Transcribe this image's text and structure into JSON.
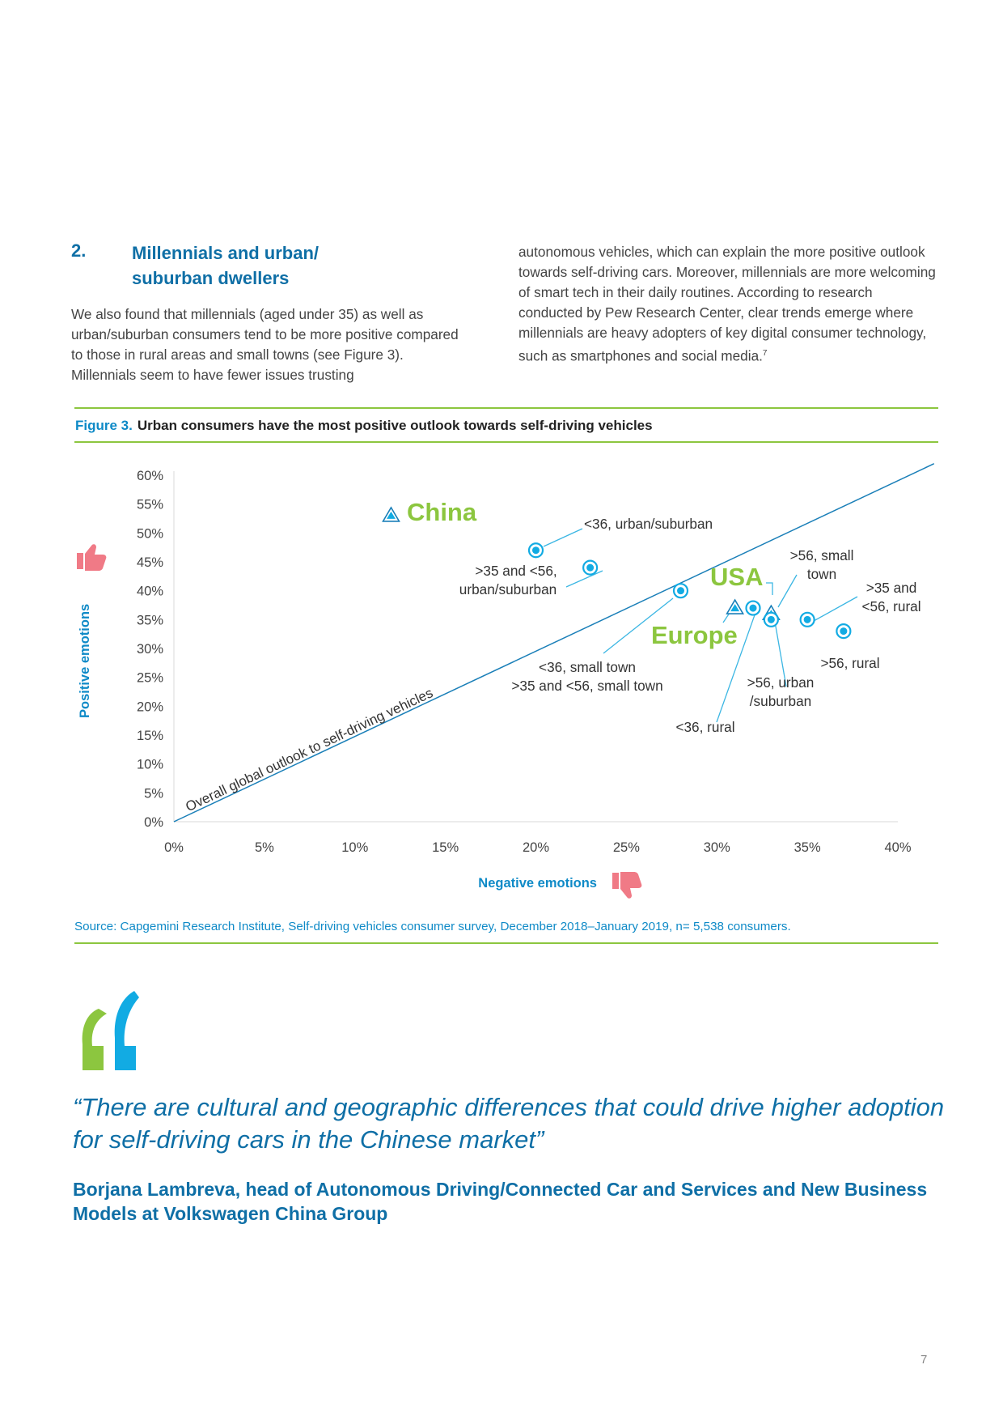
{
  "section": {
    "number": "2.",
    "title": "Millennials and urban/ suburban dwellers",
    "para1": "We also found that millennials (aged under 35) as well as urban/suburban consumers tend to be more positive compared to those in rural areas and small towns (see Figure 3). Millennials seem to have fewer issues trusting",
    "para2": "autonomous vehicles, which can explain the more positive outlook towards self-driving cars. Moreover, millennials are more welcoming of smart tech in their daily routines. According to research conducted by Pew Research Center, clear trends emerge where millennials are heavy adopters of key digital consumer technology, such as smartphones and social media.",
    "footnote": "7"
  },
  "figure": {
    "label": "Figure 3.",
    "caption": "Urban consumers have the most positive outlook towards self-driving vehicles",
    "source": "Source: Capgemini Research Institute, Self-driving vehicles consumer survey, December 2018–January 2019, n= 5,538 consumers."
  },
  "chart_data": {
    "type": "scatter",
    "xlabel": "Negative emotions",
    "ylabel": "Positive emotions",
    "xlim": [
      0,
      40
    ],
    "ylim": [
      0,
      60
    ],
    "x_ticks": [
      "0%",
      "5%",
      "10%",
      "15%",
      "20%",
      "25%",
      "30%",
      "35%",
      "40%"
    ],
    "y_ticks": [
      "0%",
      "5%",
      "10%",
      "15%",
      "20%",
      "25%",
      "30%",
      "35%",
      "40%",
      "45%",
      "50%",
      "55%",
      "60%"
    ],
    "reference_line": {
      "label": "Overall global outlook to self-driving vehicles",
      "x": [
        0,
        42
      ],
      "y": [
        0,
        62
      ]
    },
    "countries": [
      {
        "name": "China",
        "x": 12,
        "y": 53,
        "color": "#8cc63f"
      },
      {
        "name": "USA",
        "x": 31,
        "y": 37,
        "color": "#8cc63f"
      },
      {
        "name": "Europe",
        "x": 33,
        "y": 36,
        "color": "#8cc63f"
      }
    ],
    "groups": [
      {
        "name": "<36, urban/suburban",
        "x": 20,
        "y": 47
      },
      {
        "name": ">35 and <56, urban/suburban",
        "x": 23,
        "y": 44
      },
      {
        "name": "<36, small town",
        "x": 28,
        "y": 40
      },
      {
        "name": "<36, rural",
        "x": 32,
        "y": 37
      },
      {
        "name": ">56, urban /suburban",
        "x": 33,
        "y": 35
      },
      {
        "name": ">35 and <56, rural",
        "x": 35,
        "y": 35
      },
      {
        "name": ">56, rural",
        "x": 37,
        "y": 33
      }
    ],
    "annotations": {
      "china": "China",
      "usa": "USA",
      "europe": "Europe",
      "u36_urban": "<36, urban/suburban",
      "mid_urban_1": ">35 and <56,",
      "mid_urban_2": "urban/suburban",
      "small_town_1": "<36, small town",
      "small_town_2": ">35 and <56, small town",
      "u36_rural": "<36, rural",
      "o56_small_1": ">56, small",
      "o56_small_2": "town",
      "mid_rural_1": ">35 and",
      "mid_rural_2": "<56, rural",
      "o56_rural": ">56, rural",
      "o56_urban_1": ">56, urban",
      "o56_urban_2": "/suburban"
    }
  },
  "quote": {
    "text": "“There are cultural and geographic differences that could drive higher adoption for self-driving cars in the Chinese market”",
    "attribution": "Borjana Lambreva, head of Autonomous Driving/Connected Car and Services and New Business Models at Volkswagen China Group"
  },
  "page_number": "7"
}
